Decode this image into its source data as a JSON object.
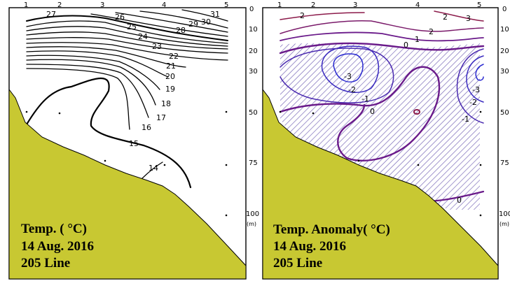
{
  "colors": {
    "seabed": "#c8c832",
    "frame": "#000000",
    "temperature_contour": "#000000",
    "anomaly_contours": [
      "#8b1a4a",
      "#6a1a8a",
      "#4a3aa8",
      "#2a2ad0"
    ],
    "anomaly_hatch": "#7a6ab8"
  },
  "chart_data": [
    {
      "type": "contour",
      "title_lines": [
        "Temp. ( °C)",
        "14 Aug. 2016",
        "205 Line"
      ],
      "x_ticks": [
        "1",
        "2",
        "3",
        "4",
        "5"
      ],
      "y_ticks": [
        "0",
        "10",
        "20",
        "30",
        "50",
        "75",
        "100"
      ],
      "y_unit": "(m)",
      "contour_levels": [
        31,
        30,
        29,
        28,
        27,
        26,
        25,
        24,
        23,
        22,
        21,
        20,
        19,
        18,
        17,
        16,
        15,
        14
      ],
      "contour_labels": [
        "27",
        "26",
        "25",
        "24",
        "23",
        "22",
        "21",
        "20",
        "19",
        "18",
        "17",
        "16",
        "15",
        "14",
        "31",
        "30",
        "29",
        "28"
      ]
    },
    {
      "type": "contour",
      "title_lines": [
        "Temp. Anomaly( °C)",
        "14 Aug. 2016",
        "205 Line"
      ],
      "x_ticks": [
        "1",
        "2",
        "3",
        "4",
        "5"
      ],
      "y_ticks": [
        "0",
        "10",
        "20",
        "30",
        "50",
        "75",
        "100"
      ],
      "y_unit": "(m)",
      "contour_levels": [
        3,
        2,
        1,
        0,
        -1,
        -2,
        -3
      ],
      "contour_labels": [
        "2",
        "2",
        "3",
        "2",
        "1",
        "0",
        "-3",
        "-2",
        "-1",
        "0",
        "-3",
        "-2",
        "-1",
        "0"
      ],
      "negative_region_hatched": true
    }
  ]
}
